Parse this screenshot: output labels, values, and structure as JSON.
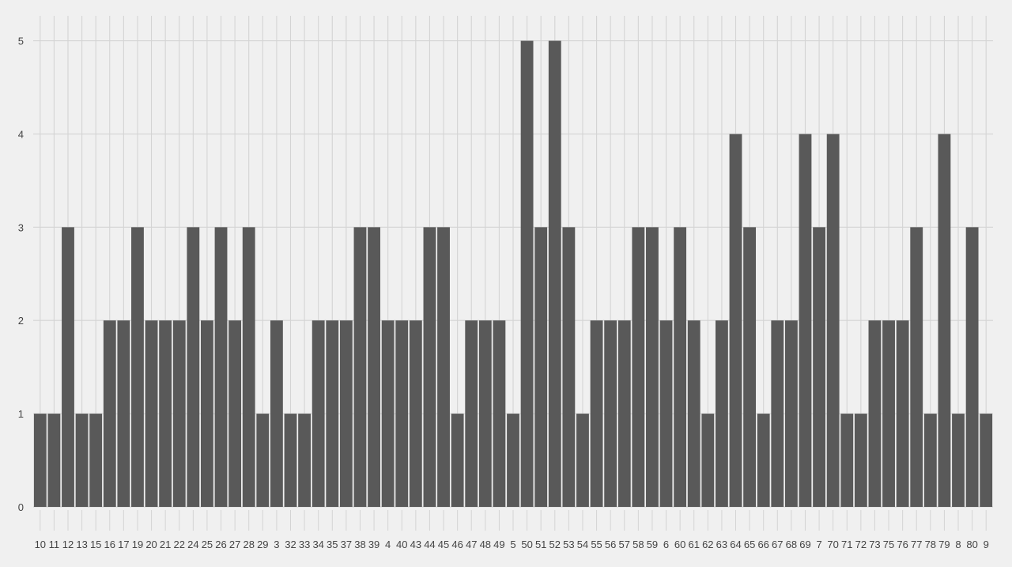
{
  "chart_data": {
    "type": "bar",
    "title": "",
    "xlabel": "",
    "ylabel": "",
    "categories": [
      "10",
      "11",
      "12",
      "13",
      "15",
      "16",
      "17",
      "19",
      "20",
      "21",
      "22",
      "24",
      "25",
      "26",
      "27",
      "28",
      "29",
      "3",
      "32",
      "33",
      "34",
      "35",
      "37",
      "38",
      "39",
      "4",
      "40",
      "43",
      "44",
      "45",
      "46",
      "47",
      "48",
      "49",
      "5",
      "50",
      "51",
      "52",
      "53",
      "54",
      "55",
      "56",
      "57",
      "58",
      "59",
      "6",
      "60",
      "61",
      "62",
      "63",
      "64",
      "65",
      "66",
      "67",
      "68",
      "69",
      "7",
      "70",
      "71",
      "72",
      "73",
      "75",
      "76",
      "77",
      "78",
      "79",
      "8",
      "80",
      "9"
    ],
    "values": [
      1,
      1,
      3,
      1,
      1,
      2,
      2,
      3,
      2,
      2,
      2,
      3,
      2,
      3,
      2,
      3,
      1,
      2,
      1,
      1,
      2,
      2,
      2,
      3,
      3,
      2,
      2,
      2,
      3,
      3,
      1,
      2,
      2,
      2,
      1,
      5,
      3,
      5,
      3,
      1,
      2,
      2,
      2,
      3,
      3,
      2,
      3,
      2,
      1,
      2,
      4,
      3,
      1,
      2,
      2,
      4,
      3,
      4,
      1,
      1,
      2,
      2,
      2,
      3,
      1,
      4,
      1,
      3,
      1
    ],
    "ylim": [
      0,
      5.2
    ],
    "yticks": [
      0,
      1,
      2,
      3,
      4,
      5
    ],
    "grid": true,
    "legend": "none",
    "colors": {
      "bar": "#595959",
      "background": "#f0f0f0",
      "grid": "#d4d4d4"
    }
  }
}
